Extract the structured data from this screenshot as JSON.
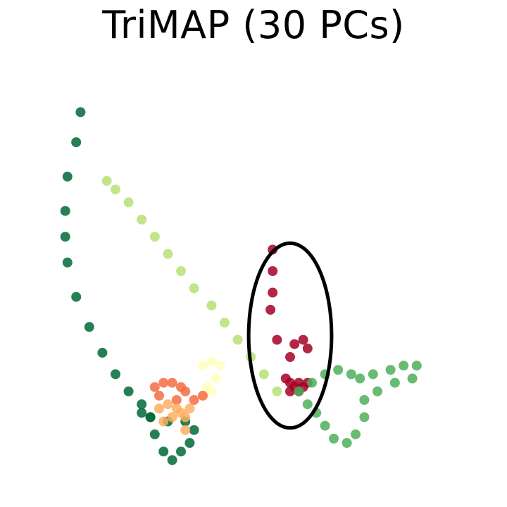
{
  "chart_data": {
    "type": "scatter",
    "title": "TriMAP (30 PCs)",
    "xlabel": "",
    "ylabel": "",
    "axes_visible": false,
    "grid": false,
    "legend": "none",
    "xlim": [
      0,
      100
    ],
    "ylim": [
      0,
      100
    ],
    "series": [
      {
        "color": "#006837",
        "points": [
          [
            12,
            87
          ],
          [
            11,
            80
          ],
          [
            9,
            72
          ],
          [
            8.5,
            64
          ],
          [
            8.5,
            58
          ],
          [
            9,
            52
          ],
          [
            11,
            44
          ],
          [
            14,
            37
          ],
          [
            17,
            31
          ],
          [
            20,
            26
          ],
          [
            23,
            22
          ],
          [
            26,
            19
          ],
          [
            28,
            16
          ],
          [
            29,
            12
          ],
          [
            31,
            8
          ],
          [
            33,
            6
          ],
          [
            35,
            8
          ],
          [
            37,
            10
          ],
          [
            38,
            13
          ],
          [
            36,
            15
          ],
          [
            32,
            15
          ],
          [
            28,
            16
          ],
          [
            26,
            17
          ]
        ]
      },
      {
        "color": "#b7e075",
        "points": [
          [
            18,
            71
          ],
          [
            20,
            69
          ],
          [
            23,
            66
          ],
          [
            26,
            62
          ],
          [
            29,
            58
          ],
          [
            32,
            54
          ],
          [
            35,
            50
          ],
          [
            38,
            46
          ],
          [
            42,
            42
          ],
          [
            45,
            38
          ],
          [
            48,
            34
          ],
          [
            51,
            30
          ],
          [
            54,
            26
          ],
          [
            57,
            22
          ]
        ]
      },
      {
        "color": "#feffbe",
        "points": [
          [
            40,
            28
          ],
          [
            42,
            29
          ],
          [
            44,
            28
          ],
          [
            43,
            25
          ],
          [
            41,
            23
          ],
          [
            40,
            21
          ],
          [
            42,
            22
          ]
        ]
      },
      {
        "color": "#f46d43",
        "points": [
          [
            29,
            23
          ],
          [
            31,
            24
          ],
          [
            33,
            24
          ],
          [
            35,
            23
          ],
          [
            36,
            22
          ],
          [
            30,
            21
          ],
          [
            34,
            20
          ],
          [
            38,
            20
          ],
          [
            40,
            21
          ]
        ]
      },
      {
        "color": "#fdae61",
        "points": [
          [
            30,
            18
          ],
          [
            32,
            19
          ],
          [
            34,
            18
          ],
          [
            35,
            17
          ],
          [
            36,
            16
          ],
          [
            33,
            16
          ],
          [
            31,
            15
          ],
          [
            37,
            18
          ],
          [
            36,
            13
          ]
        ]
      },
      {
        "color": "#a50026",
        "points": [
          [
            56,
            55
          ],
          [
            56,
            50
          ],
          [
            56,
            45
          ],
          [
            55.5,
            41
          ],
          [
            57,
            34
          ],
          [
            60,
            30
          ],
          [
            61,
            33
          ],
          [
            63,
            34
          ],
          [
            64,
            32
          ],
          [
            59,
            25
          ],
          [
            60,
            24
          ],
          [
            61,
            23
          ],
          [
            62,
            24
          ],
          [
            63,
            23
          ],
          [
            64,
            24
          ],
          [
            62,
            22
          ],
          [
            60,
            22
          ]
        ]
      },
      {
        "color": "#4daf5b",
        "points": [
          [
            62,
            22
          ],
          [
            65,
            24
          ],
          [
            68,
            26
          ],
          [
            71,
            27
          ],
          [
            74,
            26
          ],
          [
            76,
            25
          ],
          [
            79,
            26
          ],
          [
            83,
            27
          ],
          [
            86,
            28
          ],
          [
            89,
            28
          ],
          [
            88,
            25
          ],
          [
            84,
            24
          ],
          [
            80,
            22
          ],
          [
            77,
            20
          ],
          [
            77,
            16
          ],
          [
            75,
            12
          ],
          [
            73,
            10
          ],
          [
            70,
            11
          ],
          [
            68,
            14
          ],
          [
            66,
            17
          ],
          [
            64,
            19
          ]
        ]
      }
    ],
    "annotations": [
      {
        "shape": "ellipse",
        "cx": 60,
        "cy": 35,
        "rx": 9.5,
        "ry": 21.5,
        "color": "#000000"
      }
    ]
  }
}
